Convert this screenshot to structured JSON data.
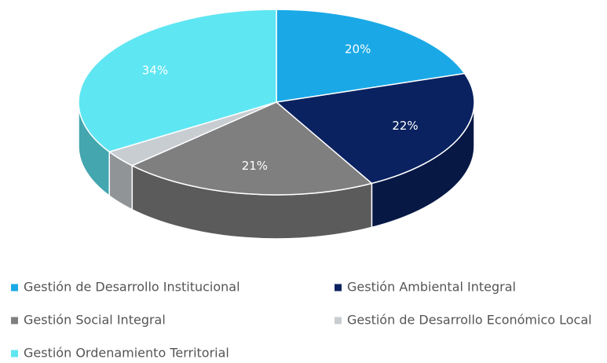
{
  "chart_data": {
    "type": "pie",
    "categories": [
      "Gestión de Desarrollo Institucional",
      "Gestión Ambiental Integral",
      "Gestión Social Integral",
      "Gestión de Desarrollo Económico Local",
      "Gestión Ordenamiento Territorial"
    ],
    "values": [
      20,
      22,
      21,
      3,
      34
    ],
    "value_labels": [
      "20%",
      "22%",
      "21%",
      null,
      "34%"
    ],
    "colors": [
      "#1aa9e6",
      "#0a2260",
      "#7f7f7f",
      "#c8cdd2",
      "#5fe6f3"
    ]
  }
}
